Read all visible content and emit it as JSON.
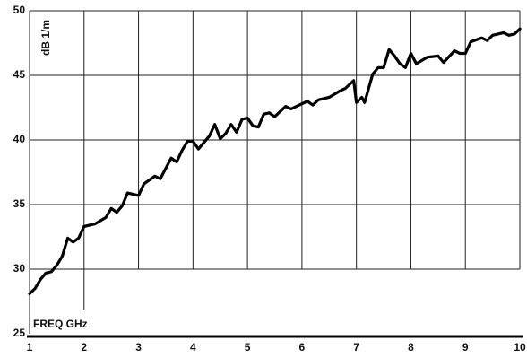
{
  "chart_data": {
    "type": "line",
    "y_label": "dB 1/m",
    "x_label": "FREQ  GHz",
    "xlim": [
      1,
      10
    ],
    "ylim": [
      25,
      50
    ],
    "xticks": [
      1,
      2,
      3,
      4,
      5,
      6,
      7,
      8,
      9,
      10
    ],
    "yticks": [
      25,
      30,
      35,
      40,
      45,
      50
    ],
    "grid": true,
    "series": [
      {
        "color": "#000000",
        "x": [
          1,
          1.1,
          1.2,
          1.3,
          1.4,
          1.5,
          1.6,
          1.7,
          1.8,
          1.9,
          2.0,
          2.2,
          2.4,
          2.5,
          2.6,
          2.7,
          2.8,
          3.0,
          3.1,
          3.3,
          3.4,
          3.6,
          3.7,
          3.8,
          3.9,
          4.0,
          4.1,
          4.3,
          4.4,
          4.5,
          4.6,
          4.7,
          4.8,
          4.9,
          5.0,
          5.1,
          5.2,
          5.3,
          5.4,
          5.5,
          5.7,
          5.8,
          6.0,
          6.1,
          6.2,
          6.3,
          6.5,
          6.7,
          6.8,
          6.95,
          7.0,
          7.1,
          7.15,
          7.3,
          7.4,
          7.5,
          7.6,
          7.7,
          7.8,
          7.9,
          8.0,
          8.1,
          8.3,
          8.5,
          8.6,
          8.8,
          8.9,
          9.0,
          9.1,
          9.3,
          9.4,
          9.5,
          9.6,
          9.7,
          9.8,
          9.9,
          10
        ],
        "values": [
          28.1,
          28.5,
          29.2,
          29.7,
          29.8,
          30.3,
          31.0,
          32.4,
          32.1,
          32.4,
          33.3,
          33.5,
          34.0,
          34.7,
          34.4,
          34.9,
          35.9,
          35.7,
          36.6,
          37.2,
          37.0,
          38.6,
          38.3,
          39.2,
          39.9,
          39.9,
          39.3,
          40.3,
          41.2,
          40.1,
          40.5,
          41.2,
          40.6,
          41.6,
          41.7,
          41.1,
          41.0,
          42.0,
          42.1,
          41.8,
          42.6,
          42.4,
          42.8,
          43.0,
          42.7,
          43.1,
          43.3,
          43.8,
          44.0,
          44.6,
          42.9,
          43.3,
          42.9,
          45.1,
          45.6,
          45.6,
          47.0,
          46.5,
          45.9,
          45.6,
          46.7,
          45.9,
          46.4,
          46.5,
          46.0,
          46.9,
          46.7,
          46.7,
          47.6,
          47.9,
          47.7,
          48.1,
          48.2,
          48.3,
          48.1,
          48.2,
          48.6
        ]
      }
    ]
  }
}
